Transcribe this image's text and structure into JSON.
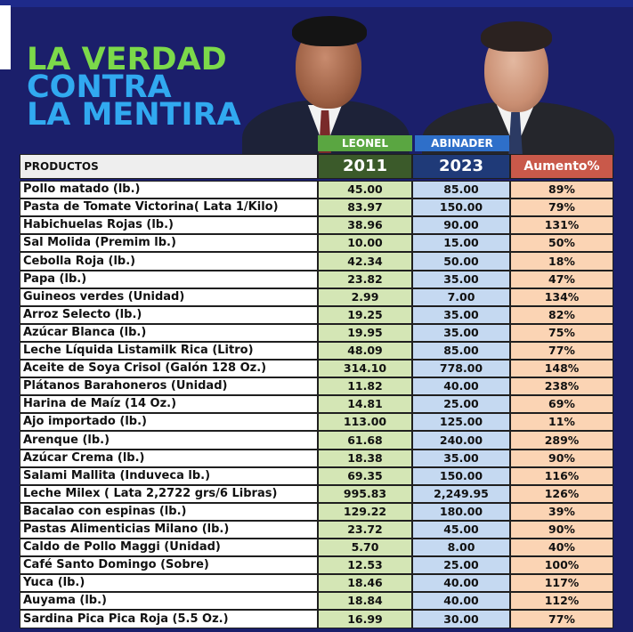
{
  "headline": {
    "line1": "LA VERDAD",
    "line2": "CONTRA",
    "line3": "LA MENTIRA"
  },
  "columns": {
    "politician_a": "LEONEL",
    "politician_b": "ABINADER",
    "products_header": "PRODUCTOS",
    "year_a": "2011",
    "year_b": "2023",
    "increase_header": "Aumento%"
  },
  "colors": {
    "background": "#1b1f6b",
    "headline_green": "#7cd94a",
    "headline_blue": "#31a9f0",
    "col_a_fill": "#d4e6b5",
    "col_b_fill": "#c5d9f1",
    "col_c_fill": "#fbd4b4"
  },
  "rows": [
    {
      "product": "Pollo matado (lb.)",
      "price_2011": "45.00",
      "price_2023": "85.00",
      "increase": "89%"
    },
    {
      "product": "Pasta de Tomate  Victorina( Lata 1/Kilo)",
      "price_2011": "83.97",
      "price_2023": "150.00",
      "increase": "79%"
    },
    {
      "product": "Habichuelas Rojas (lb.)",
      "price_2011": "38.96",
      "price_2023": "90.00",
      "increase": "131%"
    },
    {
      "product": "Sal Molida (Premim lb.)",
      "price_2011": "10.00",
      "price_2023": "15.00",
      "increase": "50%"
    },
    {
      "product": "Cebolla Roja (lb.)",
      "price_2011": "42.34",
      "price_2023": "50.00",
      "increase": "18%"
    },
    {
      "product": "Papa (lb.)",
      "price_2011": "23.82",
      "price_2023": "35.00",
      "increase": "47%"
    },
    {
      "product": "Guineos verdes (Unidad)",
      "price_2011": "2.99",
      "price_2023": "7.00",
      "increase": "134%"
    },
    {
      "product": "Arroz Selecto (lb.)",
      "price_2011": "19.25",
      "price_2023": "35.00",
      "increase": "82%"
    },
    {
      "product": "Azúcar Blanca (lb.)",
      "price_2011": "19.95",
      "price_2023": "35.00",
      "increase": "75%"
    },
    {
      "product": "Leche Líquida Listamilk Rica (Litro)",
      "price_2011": "48.09",
      "price_2023": "85.00",
      "increase": "77%"
    },
    {
      "product": "Aceite de Soya Crisol (Galón 128 Oz.)",
      "price_2011": "314.10",
      "price_2023": "778.00",
      "increase": "148%"
    },
    {
      "product": "Plátanos Barahoneros  (Unidad)",
      "price_2011": "11.82",
      "price_2023": "40.00",
      "increase": "238%"
    },
    {
      "product": "Harina de Maíz (14 Oz.)",
      "price_2011": "14.81",
      "price_2023": "25.00",
      "increase": "69%"
    },
    {
      "product": "Ajo importado (lb.)",
      "price_2011": "113.00",
      "price_2023": "125.00",
      "increase": "11%"
    },
    {
      "product": "Arenque (lb.)",
      "price_2011": "61.68",
      "price_2023": "240.00",
      "increase": "289%"
    },
    {
      "product": "Azúcar Crema (lb.)",
      "price_2011": "18.38",
      "price_2023": "35.00",
      "increase": "90%"
    },
    {
      "product": "Salami Mallita (Induveca lb.)",
      "price_2011": "69.35",
      "price_2023": "150.00",
      "increase": "116%"
    },
    {
      "product": "Leche Milex ( Lata 2,2722 grs/6 Libras)",
      "price_2011": "995.83",
      "price_2023": "2,249.95",
      "increase": "126%"
    },
    {
      "product": "Bacalao con espinas (lb.)",
      "price_2011": "129.22",
      "price_2023": "180.00",
      "increase": "39%"
    },
    {
      "product": "Pastas Alimenticias Milano (lb.)",
      "price_2011": "23.72",
      "price_2023": "45.00",
      "increase": "90%"
    },
    {
      "product": "Caldo de Pollo Maggi (Unidad)",
      "price_2011": "5.70",
      "price_2023": "8.00",
      "increase": "40%"
    },
    {
      "product": "Café Santo Domingo (Sobre)",
      "price_2011": "12.53",
      "price_2023": "25.00",
      "increase": "100%"
    },
    {
      "product": "Yuca (lb.)",
      "price_2011": "18.46",
      "price_2023": "40.00",
      "increase": "117%"
    },
    {
      "product": "Auyama (lb.)",
      "price_2011": "18.84",
      "price_2023": "40.00",
      "increase": "112%"
    },
    {
      "product": "Sardina Pica Pica Roja (5.5 Oz.)",
      "price_2011": "16.99",
      "price_2023": "30.00",
      "increase": "77%"
    }
  ]
}
